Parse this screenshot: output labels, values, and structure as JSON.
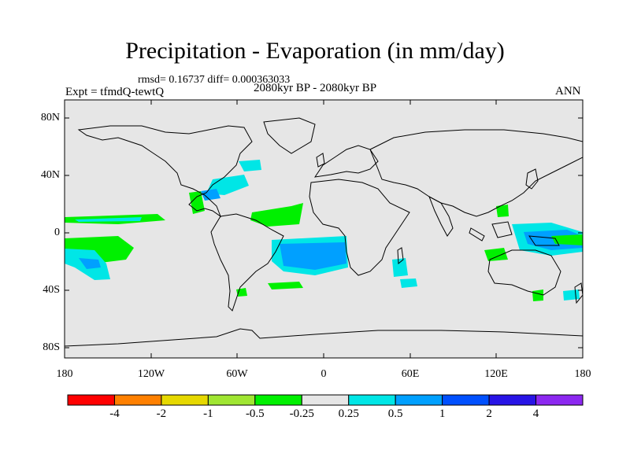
{
  "title": "Precipitation - Evaporation (in mm/day)",
  "stats_line": "rmsd= 0.16737 diff= 0.000363033",
  "experiment": "Expt = tfmdQ-tewtQ",
  "period": "2080kyr BP - 2080kyr BP",
  "season": "ANN",
  "lat_labels": [
    "80N",
    "40N",
    "0",
    "40S",
    "80S"
  ],
  "lon_labels": [
    "180",
    "120W",
    "60W",
    "0",
    "60E",
    "120E",
    "180"
  ],
  "colorbar": {
    "colors": [
      "#ff0000",
      "#ff8000",
      "#e6d800",
      "#a0e632",
      "#00f000",
      "#e6e6e6",
      "#00e6e6",
      "#00a0ff",
      "#0050ff",
      "#2814e6",
      "#8c28f0"
    ],
    "labels": [
      "-4",
      "-2",
      "-1",
      "-0.5",
      "-0.25",
      "0.25",
      "0.5",
      "1",
      "2",
      "4"
    ]
  },
  "colors": {
    "ocean_neutral": "#e6e6e6",
    "positive_light": "#00e6e6",
    "positive_mid": "#00a0ff",
    "negative_light": "#00f000",
    "coastline": "#000000"
  }
}
